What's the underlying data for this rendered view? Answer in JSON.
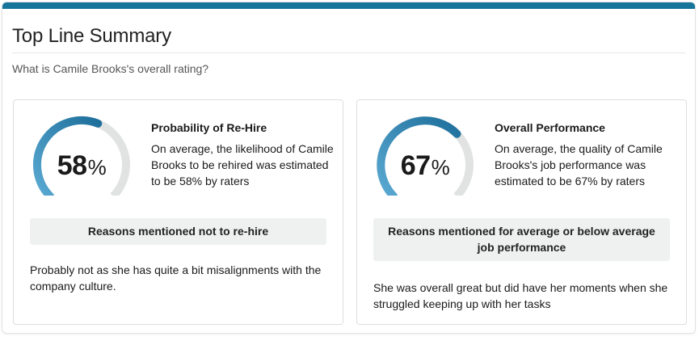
{
  "summary": {
    "title": "Top Line Summary",
    "question": "What is Camile Brooks's overall rating?"
  },
  "colors": {
    "accent_bar": "#16759a",
    "gauge_track": "#e1e3e3",
    "gauge_fill_start": "#5aaad3",
    "gauge_fill_end": "#1f6f9c"
  },
  "cards": [
    {
      "gauge": {
        "value": 58,
        "number": "58",
        "unit": "%"
      },
      "title": "Probability of Re-Hire",
      "text": "On average, the likelihood of Camile Brooks to be rehired was estimated to be 58% by raters",
      "reasons_label": "Reasons mentioned not to re-hire",
      "comment": "Probably not as she has quite a bit misalignments with the company culture."
    },
    {
      "gauge": {
        "value": 67,
        "number": "67",
        "unit": "%"
      },
      "title": "Overall Performance",
      "text": "On average, the quality of Camile Brooks's job performance was estimated to be 67% by raters",
      "reasons_label": "Reasons mentioned for average or below average job performance",
      "comment": "She was overall great but did have her moments when she struggled keeping up with her tasks"
    }
  ]
}
